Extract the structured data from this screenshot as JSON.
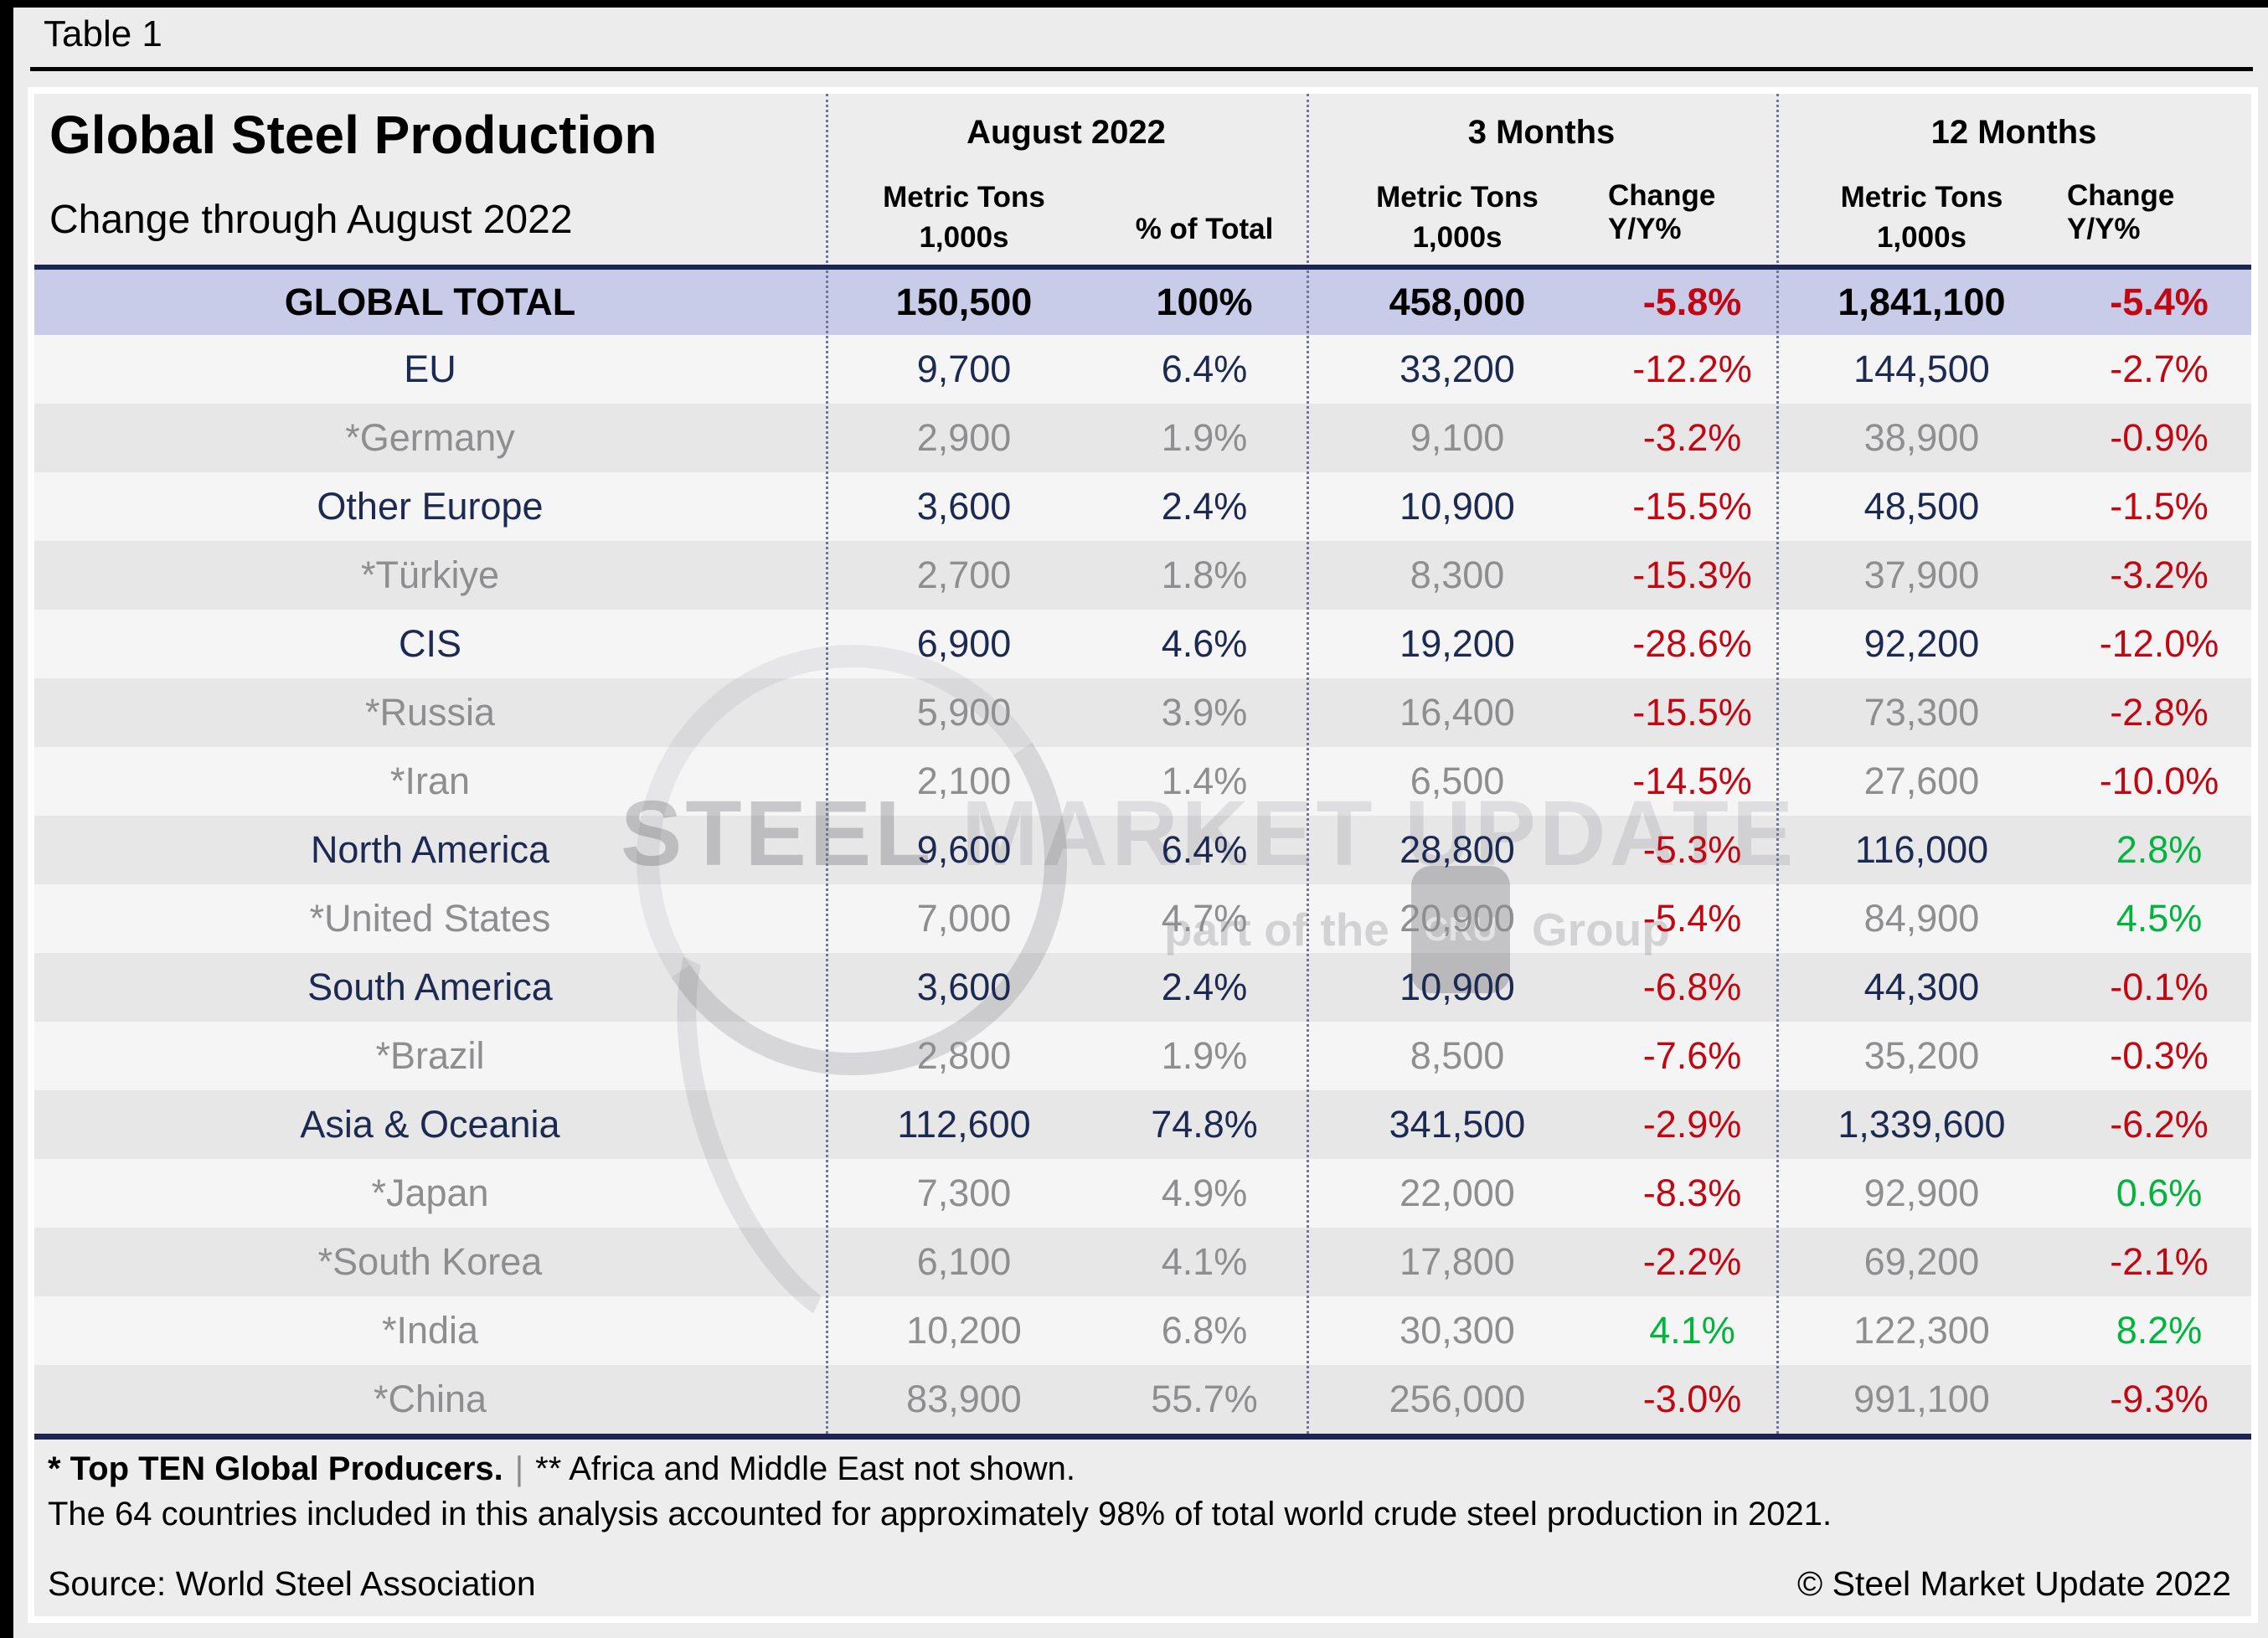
{
  "window": {
    "table_label": "Table 1"
  },
  "header": {
    "title": "Global Steel Production",
    "subtitle": "Change through August 2022",
    "groups": {
      "aug": {
        "label": "August 2022",
        "mt1": "Metric Tons",
        "mt2": "1,000s",
        "col2": "% of Total"
      },
      "m3": {
        "label": "3 Months",
        "mt1": "Metric Tons",
        "mt2": "1,000s",
        "col2": "Change Y/Y%"
      },
      "m12": {
        "label": "12 Months",
        "mt1": "Metric Tons",
        "mt2": "1,000s",
        "col2": "Change Y/Y%"
      }
    }
  },
  "watermark": {
    "brand_strong": "STEEL",
    "brand_rest": " MARKET UPDATE",
    "sub_prefix": "part of the",
    "sub_logo": "CRU",
    "sub_suffix": "Group"
  },
  "footnotes": {
    "note1_bold": "* Top TEN Global Producers.",
    "note1_sep": "|",
    "note1_rest": "** Africa and Middle East not shown.",
    "note2": "The 64 countries included in this analysis accounted for approximately 98% of total world crude steel production in 2021.",
    "source": "Source: World Steel Association",
    "copyright": "© Steel Market Update 2022"
  },
  "colors": {
    "negative_red": "#c00712",
    "positive_green": "#00b43c",
    "region_navy": "#1c2a52",
    "country_gray": "#8e8e90",
    "total_row_bg": "#c9cce9",
    "rule_navy": "#1b2553"
  },
  "chart_data": {
    "type": "table",
    "title": "Global Steel Production",
    "subtitle": "Change through August 2022",
    "columns": [
      "Region/Country",
      "August 2022 Metric Tons 1,000s",
      "August 2022 % of Total",
      "3 Months Metric Tons 1,000s",
      "3 Months Change Y/Y%",
      "12 Months Metric Tons 1,000s",
      "12 Months Change Y/Y%"
    ],
    "total_row": {
      "label": "GLOBAL TOTAL",
      "aug_mt": "150,500",
      "aug_pct": "100%",
      "m3_mt": "458,000",
      "m3_chg": "-5.8%",
      "m12_mt": "1,841,100",
      "m12_chg": "-5.4%"
    },
    "rows": [
      {
        "label": "EU",
        "type": "region",
        "aug_mt": "9,700",
        "aug_pct": "6.4%",
        "m3_mt": "33,200",
        "m3_chg": "-12.2%",
        "m12_mt": "144,500",
        "m12_chg": "-2.7%"
      },
      {
        "label": "*Germany",
        "type": "country",
        "aug_mt": "2,900",
        "aug_pct": "1.9%",
        "m3_mt": "9,100",
        "m3_chg": "-3.2%",
        "m12_mt": "38,900",
        "m12_chg": "-0.9%"
      },
      {
        "label": "Other Europe",
        "type": "region",
        "aug_mt": "3,600",
        "aug_pct": "2.4%",
        "m3_mt": "10,900",
        "m3_chg": "-15.5%",
        "m12_mt": "48,500",
        "m12_chg": "-1.5%"
      },
      {
        "label": "*Türkiye",
        "type": "country",
        "aug_mt": "2,700",
        "aug_pct": "1.8%",
        "m3_mt": "8,300",
        "m3_chg": "-15.3%",
        "m12_mt": "37,900",
        "m12_chg": "-3.2%"
      },
      {
        "label": "CIS",
        "type": "region",
        "aug_mt": "6,900",
        "aug_pct": "4.6%",
        "m3_mt": "19,200",
        "m3_chg": "-28.6%",
        "m12_mt": "92,200",
        "m12_chg": "-12.0%"
      },
      {
        "label": "*Russia",
        "type": "country",
        "aug_mt": "5,900",
        "aug_pct": "3.9%",
        "m3_mt": "16,400",
        "m3_chg": "-15.5%",
        "m12_mt": "73,300",
        "m12_chg": "-2.8%"
      },
      {
        "label": "*Iran",
        "type": "country",
        "aug_mt": "2,100",
        "aug_pct": "1.4%",
        "m3_mt": "6,500",
        "m3_chg": "-14.5%",
        "m12_mt": "27,600",
        "m12_chg": "-10.0%"
      },
      {
        "label": "North America",
        "type": "region",
        "aug_mt": "9,600",
        "aug_pct": "6.4%",
        "m3_mt": "28,800",
        "m3_chg": "-5.3%",
        "m12_mt": "116,000",
        "m12_chg": "2.8%"
      },
      {
        "label": "*United States",
        "type": "country",
        "aug_mt": "7,000",
        "aug_pct": "4.7%",
        "m3_mt": "20,900",
        "m3_chg": "-5.4%",
        "m12_mt": "84,900",
        "m12_chg": "4.5%"
      },
      {
        "label": "South America",
        "type": "region",
        "aug_mt": "3,600",
        "aug_pct": "2.4%",
        "m3_mt": "10,900",
        "m3_chg": "-6.8%",
        "m12_mt": "44,300",
        "m12_chg": "-0.1%"
      },
      {
        "label": "*Brazil",
        "type": "country",
        "aug_mt": "2,800",
        "aug_pct": "1.9%",
        "m3_mt": "8,500",
        "m3_chg": "-7.6%",
        "m12_mt": "35,200",
        "m12_chg": "-0.3%"
      },
      {
        "label": "Asia & Oceania",
        "type": "region",
        "aug_mt": "112,600",
        "aug_pct": "74.8%",
        "m3_mt": "341,500",
        "m3_chg": "-2.9%",
        "m12_mt": "1,339,600",
        "m12_chg": "-6.2%"
      },
      {
        "label": "*Japan",
        "type": "country",
        "aug_mt": "7,300",
        "aug_pct": "4.9%",
        "m3_mt": "22,000",
        "m3_chg": "-8.3%",
        "m12_mt": "92,900",
        "m12_chg": "0.6%"
      },
      {
        "label": "*South Korea",
        "type": "country",
        "aug_mt": "6,100",
        "aug_pct": "4.1%",
        "m3_mt": "17,800",
        "m3_chg": "-2.2%",
        "m12_mt": "69,200",
        "m12_chg": "-2.1%"
      },
      {
        "label": "*India",
        "type": "country",
        "aug_mt": "10,200",
        "aug_pct": "6.8%",
        "m3_mt": "30,300",
        "m3_chg": "4.1%",
        "m12_mt": "122,300",
        "m12_chg": "8.2%"
      },
      {
        "label": "*China",
        "type": "country",
        "aug_mt": "83,900",
        "aug_pct": "55.7%",
        "m3_mt": "256,000",
        "m3_chg": "-3.0%",
        "m12_mt": "991,100",
        "m12_chg": "-9.3%"
      }
    ]
  }
}
